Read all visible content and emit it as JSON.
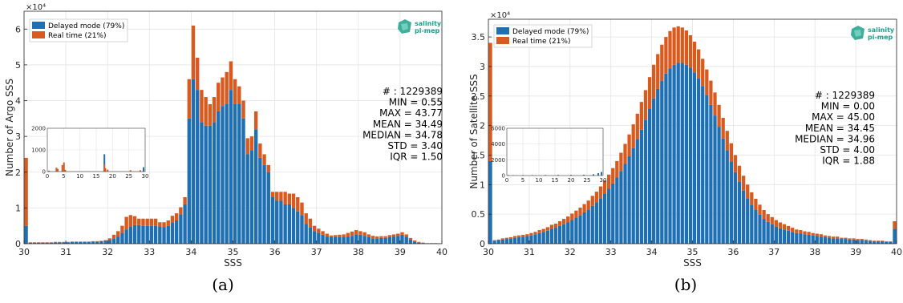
{
  "colors": {
    "delayed": "#1f70b3",
    "realtime": "#d95a1e",
    "logo": "#1fa08a",
    "grid": "#e3e3e3"
  },
  "chart_data": [
    {
      "type": "bar",
      "stacked": true,
      "caption": "(a)",
      "xlabel": "SSS",
      "ylabel": "Number of Argo SSS",
      "multiplier": "×10⁴",
      "xlim": [
        30,
        40
      ],
      "ylim": [
        0,
        6.5
      ],
      "xticks": [
        "30",
        "31",
        "32",
        "33",
        "34",
        "35",
        "36",
        "37",
        "38",
        "39",
        "40"
      ],
      "yticks": [
        "0",
        "1",
        "2",
        "3",
        "4",
        "5",
        "6"
      ],
      "grid": true,
      "legend_position": "top-left",
      "legend": [
        "Delayed mode (79%)",
        "Real time (21%)"
      ],
      "logo": {
        "line1": "salinity",
        "line2": "pi-mep"
      },
      "stats": [
        "# : 1229389",
        "MIN = 0.55",
        "MAX =  43.77",
        "MEAN = 34.49",
        "MEDIAN = 34.78",
        "STD = 3.40",
        "IQR = 1.50"
      ],
      "series": [
        {
          "name": "Delayed mode (79%)",
          "values": [
            0.5,
            0.03,
            0.03,
            0.03,
            0.03,
            0.03,
            0.03,
            0.04,
            0.04,
            0.04,
            0.04,
            0.05,
            0.05,
            0.05,
            0.05,
            0.05,
            0.06,
            0.06,
            0.07,
            0.08,
            0.1,
            0.15,
            0.2,
            0.3,
            0.4,
            0.48,
            0.52,
            0.52,
            0.5,
            0.5,
            0.5,
            0.5,
            0.48,
            0.46,
            0.5,
            0.6,
            0.65,
            0.82,
            1.1,
            3.5,
            4.6,
            4.3,
            3.4,
            3.3,
            3.3,
            3.4,
            3.7,
            3.85,
            3.9,
            4.3,
            3.9,
            3.9,
            3.5,
            2.5,
            2.6,
            3.2,
            2.4,
            2.2,
            2.0,
            1.3,
            1.2,
            1.2,
            1.1,
            1.1,
            1.0,
            0.9,
            0.8,
            0.55,
            0.45,
            0.35,
            0.3,
            0.25,
            0.2,
            0.18,
            0.18,
            0.18,
            0.18,
            0.2,
            0.22,
            0.26,
            0.25,
            0.22,
            0.18,
            0.15,
            0.15,
            0.16,
            0.16,
            0.18,
            0.2,
            0.22,
            0.25,
            0.2,
            0.12,
            0.06,
            0.03,
            0.02,
            0.01,
            0.01,
            0.01,
            0.005
          ]
        },
        {
          "name": "Real time (21%)",
          "values": [
            1.9,
            0.01,
            0.01,
            0.01,
            0.01,
            0.01,
            0.01,
            0.01,
            0.01,
            0.01,
            0.01,
            0.01,
            0.01,
            0.01,
            0.01,
            0.01,
            0.01,
            0.01,
            0.01,
            0.02,
            0.05,
            0.1,
            0.15,
            0.2,
            0.35,
            0.32,
            0.25,
            0.18,
            0.2,
            0.2,
            0.2,
            0.2,
            0.12,
            0.14,
            0.15,
            0.18,
            0.2,
            0.2,
            0.2,
            1.1,
            1.5,
            0.9,
            0.9,
            0.8,
            0.6,
            0.7,
            0.8,
            0.8,
            0.9,
            0.8,
            0.7,
            0.5,
            0.5,
            0.45,
            0.4,
            0.5,
            0.4,
            0.3,
            0.2,
            0.15,
            0.25,
            0.25,
            0.35,
            0.3,
            0.4,
            0.4,
            0.35,
            0.3,
            0.25,
            0.15,
            0.12,
            0.1,
            0.08,
            0.05,
            0.06,
            0.07,
            0.08,
            0.1,
            0.12,
            0.12,
            0.1,
            0.1,
            0.08,
            0.07,
            0.05,
            0.05,
            0.05,
            0.06,
            0.06,
            0.06,
            0.07,
            0.06,
            0.04,
            0.03,
            0.02,
            0.01,
            0.005,
            0.005,
            0.005,
            0.005
          ]
        }
      ],
      "inset": {
        "xlim": [
          0,
          30
        ],
        "ylim": [
          0,
          2000
        ],
        "xticks": [
          "0",
          "5",
          "10",
          "15",
          "20",
          "25",
          "30"
        ],
        "yticks": [
          "0",
          "1000",
          "2000"
        ],
        "series": [
          {
            "name": "Delayed mode (79%)",
            "points": [
              [
                17.5,
                800
              ],
              [
                29.5,
                200
              ]
            ]
          },
          {
            "name": "Real time (21%)",
            "points": [
              [
                0.5,
                40
              ],
              [
                2.8,
                180
              ],
              [
                3.2,
                120
              ],
              [
                4.6,
                300
              ],
              [
                5.1,
                420
              ],
              [
                5.5,
                80
              ],
              [
                17.5,
                320
              ],
              [
                17.8,
                150
              ],
              [
                18.5,
                90
              ],
              [
                25.5,
                60
              ],
              [
                28.5,
                60
              ]
            ]
          }
        ]
      }
    },
    {
      "type": "bar",
      "stacked": true,
      "caption": "(b)",
      "xlabel": "SSS",
      "ylabel": "Number of Satellite SSS",
      "multiplier": "×10⁴",
      "xlim": [
        30,
        40
      ],
      "ylim": [
        0,
        3.8
      ],
      "xticks": [
        "30",
        "31",
        "32",
        "33",
        "34",
        "35",
        "36",
        "37",
        "38",
        "39",
        "40"
      ],
      "yticks": [
        "0",
        "0.5",
        "1",
        "1.5",
        "2",
        "2.5",
        "3",
        "3.5"
      ],
      "grid": true,
      "legend_position": "top-left",
      "legend": [
        "Delayed mode (79%)",
        "Real time (21%)"
      ],
      "logo": {
        "line1": "salinity",
        "line2": "pi-mep"
      },
      "stats": [
        "# : 1229389",
        "MIN = 0.00",
        "MAX =  45.00",
        "MEAN = 34.45",
        "MEDIAN = 34.96",
        "STD = 4.00",
        "IQR = 1.88"
      ],
      "series": [
        {
          "name": "Delayed mode (79%)",
          "values": [
            1.4,
            0.05,
            0.06,
            0.07,
            0.08,
            0.09,
            0.1,
            0.11,
            0.12,
            0.13,
            0.14,
            0.16,
            0.18,
            0.2,
            0.22,
            0.25,
            0.27,
            0.3,
            0.33,
            0.36,
            0.4,
            0.44,
            0.48,
            0.53,
            0.58,
            0.64,
            0.7,
            0.77,
            0.85,
            0.93,
            1.02,
            1.12,
            1.23,
            1.35,
            1.48,
            1.62,
            1.77,
            1.93,
            2.1,
            2.28,
            2.46,
            2.62,
            2.76,
            2.88,
            2.97,
            3.03,
            3.06,
            3.06,
            3.03,
            2.98,
            2.9,
            2.8,
            2.67,
            2.52,
            2.35,
            2.17,
            1.98,
            1.78,
            1.58,
            1.39,
            1.21,
            1.05,
            0.9,
            0.77,
            0.66,
            0.57,
            0.49,
            0.42,
            0.37,
            0.33,
            0.29,
            0.26,
            0.24,
            0.22,
            0.2,
            0.18,
            0.17,
            0.16,
            0.15,
            0.14,
            0.13,
            0.12,
            0.11,
            0.1,
            0.09,
            0.09,
            0.08,
            0.08,
            0.07,
            0.07,
            0.06,
            0.06,
            0.05,
            0.05,
            0.04,
            0.04,
            0.04,
            0.03,
            0.03,
            0.25
          ]
        },
        {
          "name": "Real time (21%)",
          "values": [
            2.0,
            0.01,
            0.01,
            0.02,
            0.02,
            0.02,
            0.03,
            0.03,
            0.03,
            0.03,
            0.04,
            0.04,
            0.05,
            0.05,
            0.06,
            0.07,
            0.07,
            0.08,
            0.09,
            0.1,
            0.11,
            0.12,
            0.13,
            0.14,
            0.15,
            0.17,
            0.18,
            0.2,
            0.22,
            0.24,
            0.26,
            0.28,
            0.31,
            0.34,
            0.37,
            0.4,
            0.43,
            0.47,
            0.5,
            0.54,
            0.57,
            0.59,
            0.61,
            0.62,
            0.63,
            0.63,
            0.62,
            0.6,
            0.58,
            0.55,
            0.52,
            0.49,
            0.46,
            0.43,
            0.41,
            0.39,
            0.37,
            0.35,
            0.33,
            0.31,
            0.29,
            0.27,
            0.25,
            0.23,
            0.21,
            0.19,
            0.17,
            0.15,
            0.13,
            0.12,
            0.11,
            0.1,
            0.09,
            0.08,
            0.07,
            0.06,
            0.06,
            0.05,
            0.05,
            0.04,
            0.04,
            0.04,
            0.03,
            0.03,
            0.03,
            0.03,
            0.02,
            0.02,
            0.02,
            0.02,
            0.02,
            0.02,
            0.02,
            0.01,
            0.01,
            0.01,
            0.01,
            0.01,
            0.01,
            0.13
          ]
        }
      ],
      "inset": {
        "xlim": [
          0,
          30
        ],
        "ylim": [
          0,
          6000
        ],
        "xticks": [
          "0",
          "5",
          "10",
          "15",
          "20",
          "25",
          "30"
        ],
        "yticks": [
          "0",
          "2000",
          "4000",
          "6000"
        ],
        "series": [
          {
            "name": "Delayed mode (79%)",
            "points": [
              [
                0.5,
                60
              ],
              [
                2,
                50
              ],
              [
                5,
                60
              ],
              [
                8,
                60
              ],
              [
                12,
                70
              ],
              [
                16,
                80
              ],
              [
                20,
                90
              ],
              [
                24,
                110
              ],
              [
                27,
                160
              ],
              [
                28.5,
                300
              ],
              [
                29.5,
                450
              ]
            ]
          },
          {
            "name": "Real time (21%)",
            "points": [
              [
                0.5,
                20
              ],
              [
                3,
                20
              ],
              [
                9,
                20
              ],
              [
                15,
                20
              ],
              [
                21,
                20
              ],
              [
                26,
                30
              ],
              [
                29.5,
                60
              ]
            ]
          }
        ]
      }
    }
  ]
}
